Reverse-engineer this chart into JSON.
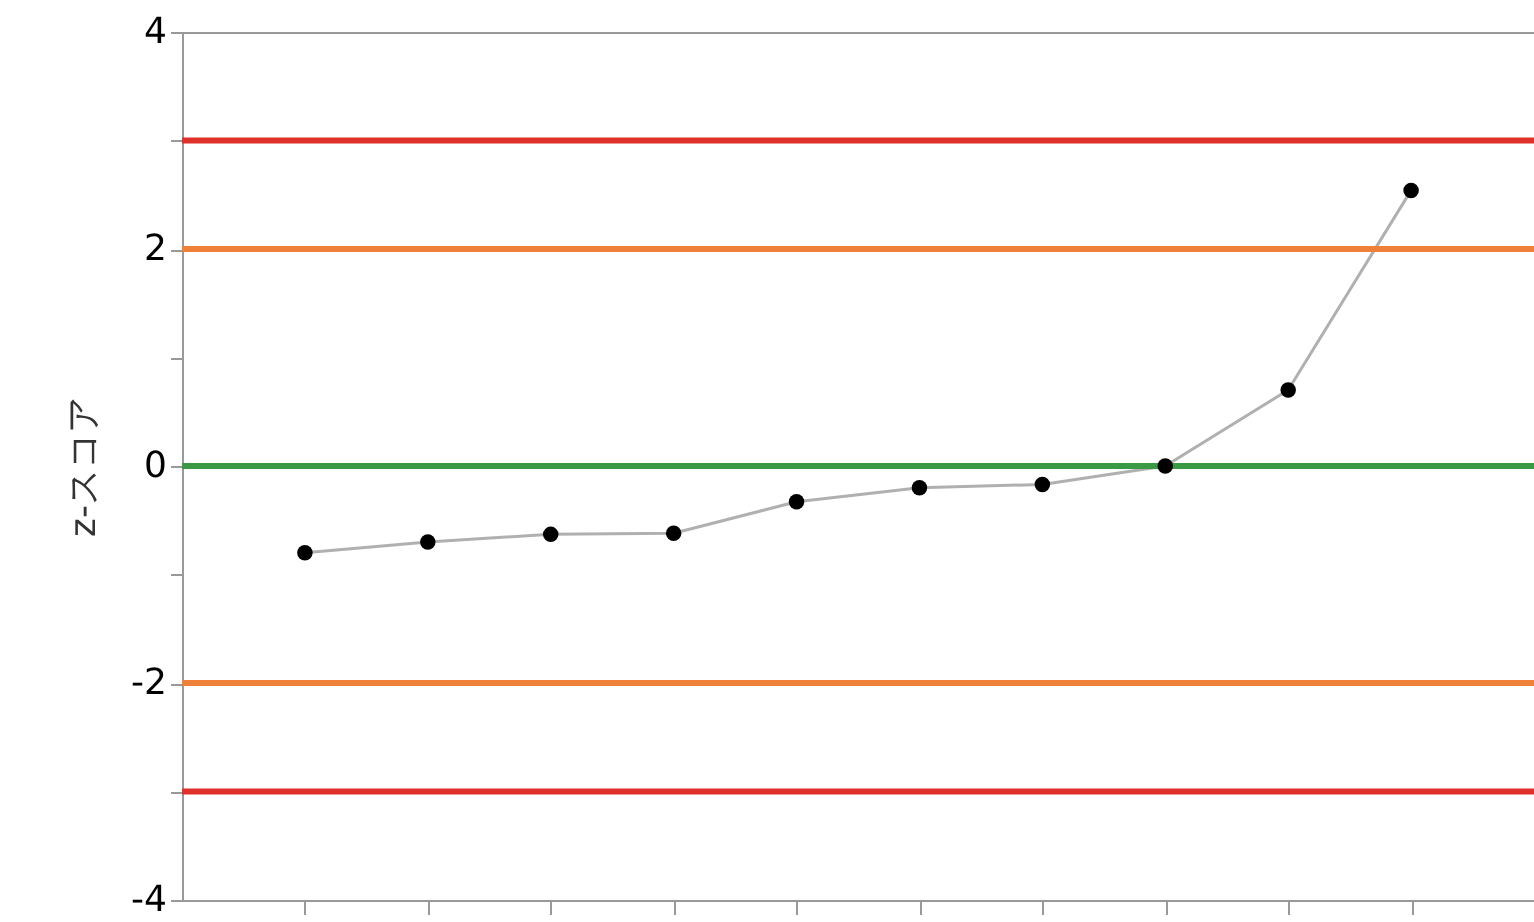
{
  "chart_data": {
    "type": "line",
    "ylabel": "z-スコア",
    "categories": [
      null,
      null,
      null,
      null,
      null,
      null,
      null,
      null,
      null,
      null
    ],
    "series": [
      {
        "color": "#b0b0b0",
        "values": [
          -0.8,
          -0.7,
          -0.63,
          -0.62,
          -0.33,
          -0.2,
          -0.17,
          0,
          0.7,
          2.54
        ]
      }
    ],
    "marker": "circle",
    "ylim": [
      -4,
      4
    ],
    "yticks": [
      -4,
      {
        "value": -3,
        "label": null
      },
      -2,
      {
        "value": -1,
        "label": null
      },
      0,
      {
        "value": 1,
        "label": null
      },
      2,
      {
        "value": 3,
        "label": null
      },
      4
    ],
    "ref_lines": [
      {
        "axis": "y",
        "value": 3,
        "color": "#e0302a"
      },
      {
        "axis": "y",
        "value": 2,
        "color": "#ef8038"
      },
      {
        "axis": "y",
        "value": 0,
        "color": "#3a9a44"
      },
      {
        "axis": "y",
        "value": -2,
        "color": "#ef8038"
      },
      {
        "axis": "y",
        "value": -3,
        "color": "#e0302a"
      }
    ],
    "tick_labels": "y"
  }
}
